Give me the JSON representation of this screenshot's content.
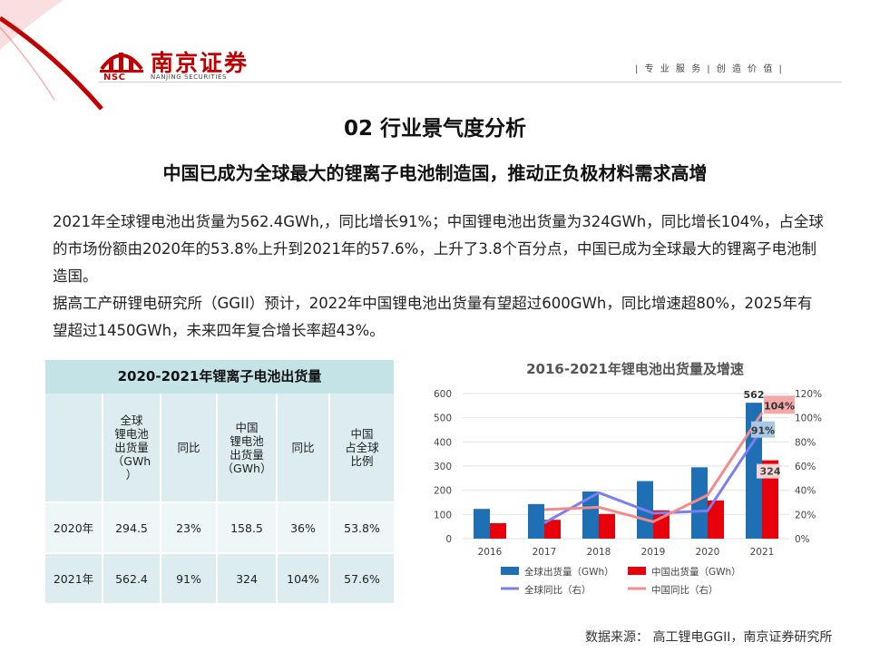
{
  "brand": {
    "abbr": "NSC",
    "name_cn": "南京证券",
    "name_en": "NANJING SECURITIES",
    "slogan": "| 专 业 服 务 | 创 造 价 值 |",
    "color": "#c00000"
  },
  "section_title": "02 行业景气度分析",
  "headline": "中国已成为全球最大的锂离子电池制造国，推动正负极材料需求高增",
  "paragraphs": [
    "2021年全球锂电池出货量为562.4GWh,，同比增长91%；中国锂电池出货量为324GWh，同比增长104%，占全球的市场份额由2020年的53.8%上升到2021年的57.6%，上升了3.8个百分点，中国已成为全球最大的锂离子电池制造国。",
    "据高工产研锂电研究所（GGII）预计，2022年中国锂电池出货量有望超过600GWh，同比增速超80%，2025年有望超过1450GWh，未来四年复合增长率超43%。"
  ],
  "table": {
    "title": "2020-2021年锂离子电池出货量",
    "headers": [
      "",
      "全球\n锂电池\n出货量\n（GWh\n）",
      "同比",
      "中国\n锂电池\n出货量\n（GWh）",
      "同比",
      "中国\n占全球\n比例"
    ],
    "rows": [
      [
        "2020年",
        "294.5",
        "23%",
        "158.5",
        "36%",
        "53.8%"
      ],
      [
        "2021年",
        "562.4",
        "91%",
        "324",
        "104%",
        "57.6%"
      ]
    ]
  },
  "chart_data": {
    "type": "bar",
    "title": "2016-2021年锂电池出货量及增速",
    "categories": [
      "2016",
      "2017",
      "2018",
      "2019",
      "2020",
      "2021"
    ],
    "series": [
      {
        "name": "全球出货量（GWh）",
        "kind": "bar",
        "axis": "left",
        "color": "#1f6fb5",
        "values": [
          123,
          143,
          195,
          238,
          295,
          562
        ]
      },
      {
        "name": "中国出货量（GWh）",
        "kind": "bar",
        "axis": "left",
        "color": "#e8000b",
        "values": [
          64,
          78,
          102,
          117,
          158,
          324
        ]
      },
      {
        "name": "全球同比（右）",
        "kind": "line",
        "axis": "right",
        "color": "#7b7ff0",
        "values": [
          null,
          13,
          38,
          21,
          23,
          91
        ]
      },
      {
        "name": "中国同比（右）",
        "kind": "line",
        "axis": "right",
        "color": "#f28b8b",
        "values": [
          null,
          24,
          26,
          14,
          36,
          104
        ]
      }
    ],
    "data_labels": {
      "global_2021": "562",
      "china_2021": "324",
      "global_growth_2021": "91%",
      "china_growth_2021": "104%"
    },
    "ylim_left": [
      0,
      600
    ],
    "yticks_left": [
      "0",
      "100",
      "200",
      "300",
      "400",
      "500",
      "600"
    ],
    "ylim_right": [
      0,
      120
    ],
    "yticks_right": [
      "0%",
      "20%",
      "40%",
      "60%",
      "80%",
      "100%",
      "120%"
    ],
    "grid": true,
    "legend_placement": "bottom"
  },
  "source": "数据来源： 高工锂电GGII，南京证券研究所"
}
